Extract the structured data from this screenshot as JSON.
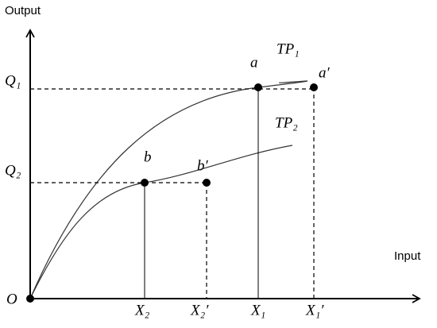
{
  "axes": {
    "y_label": "Output",
    "x_label": "Input",
    "origin": "O"
  },
  "y_labels": {
    "q1": "Q₁",
    "q2": "Q₂"
  },
  "x_labels": {
    "x2": "X₂",
    "x2_prime": "X₂′",
    "x1": "X₁",
    "x1_prime": "X₁′"
  },
  "curves": {
    "tp1": "TP₁",
    "tp2": "TP₂"
  },
  "points": {
    "a": "a",
    "a_prime": "a′",
    "b": "b",
    "b_prime": "b′"
  }
}
